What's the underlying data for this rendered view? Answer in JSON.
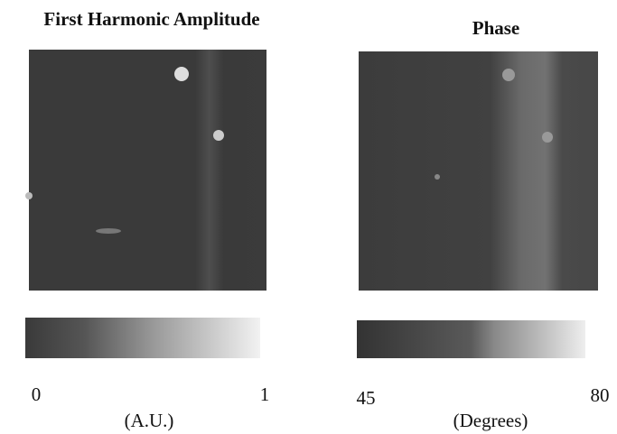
{
  "panels": [
    {
      "title": "First Harmonic Amplitude",
      "colorbar": {
        "min": 0,
        "max": 1,
        "unit": "(A.U.)"
      }
    },
    {
      "title": "Phase",
      "colorbar": {
        "min": 45,
        "max": 80,
        "unit": "(Degrees)"
      }
    }
  ]
}
